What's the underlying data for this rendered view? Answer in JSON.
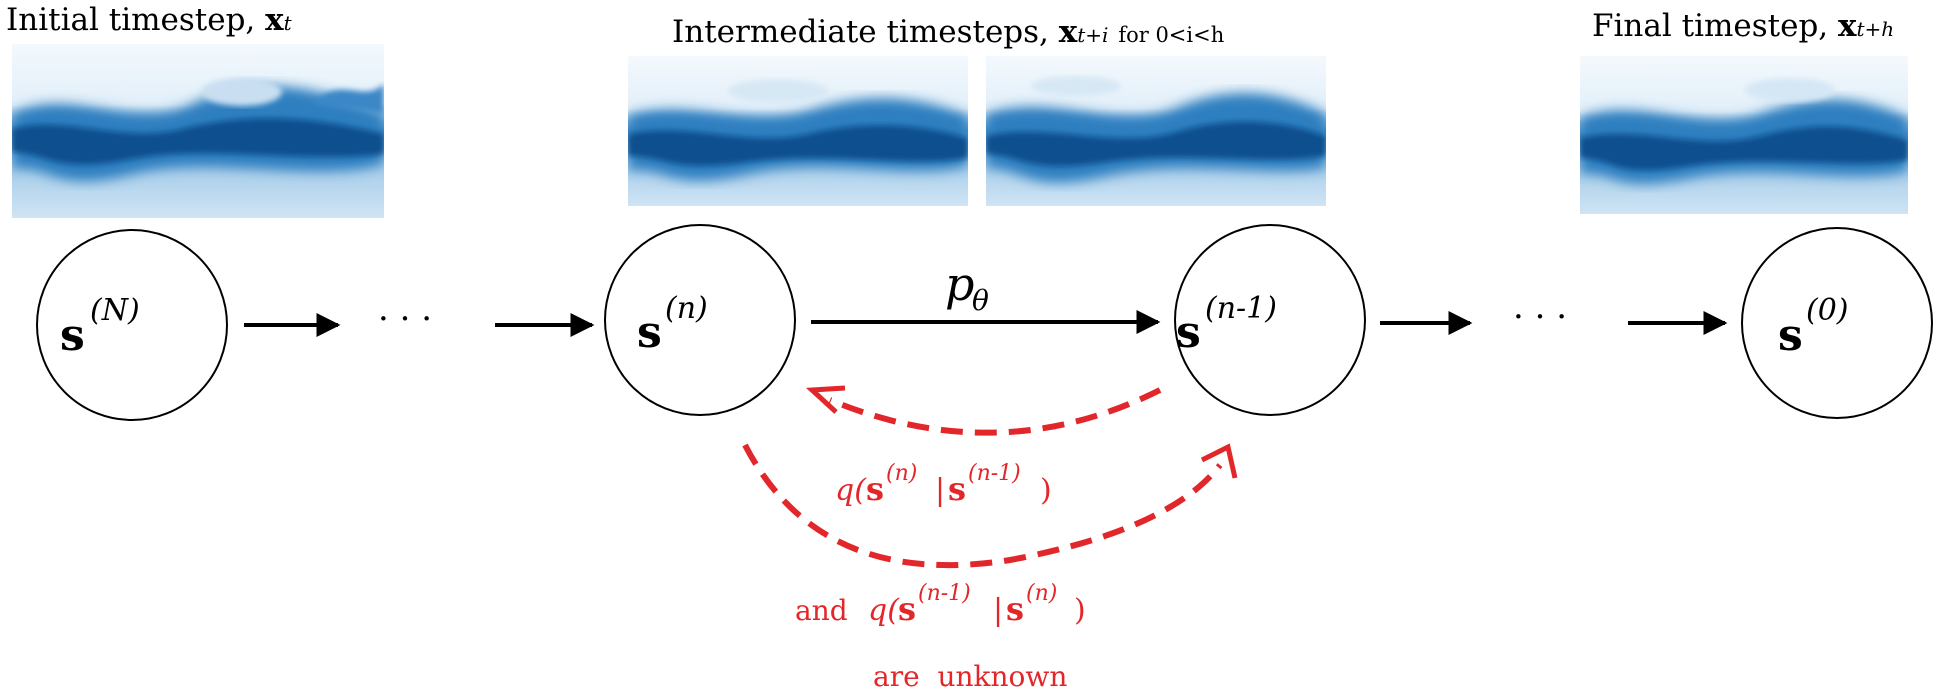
{
  "labels": {
    "initial": "Initial timestep,",
    "initial_var": "x",
    "initial_sub": "t",
    "intermediate": "Intermediate timesteps,",
    "intermediate_var": "x",
    "intermediate_sub": "t+i",
    "intermediate_cond": "for 0<i<h",
    "final": "Final timestep,",
    "final_var": "x",
    "final_sub": "t+h"
  },
  "nodes": {
    "n1_base": "s",
    "n1_sup": "(N)",
    "n2_base": "s",
    "n2_sup": "(n)",
    "n3_base": "s",
    "n3_sup": "(n-1)",
    "n4_base": "s",
    "n4_sup": "(0)"
  },
  "ellipsis": "· · ·",
  "model_label_base": "p",
  "model_label_sub": "θ",
  "q1": "q(s(n)|s(n-1))",
  "q1_parts": {
    "q": "q(",
    "s1": "s",
    "sup1": "(n)",
    "bar": "|",
    "s2": "s",
    "sup2": "(n-1)",
    "close": ")"
  },
  "q2_parts": {
    "and": "and",
    "q": "q(",
    "s1": "s",
    "sup1": "(n-1)",
    "bar": "|",
    "s2": "s",
    "sup2": "(n)",
    "close": ")"
  },
  "unknown": "are  unknown",
  "colors": {
    "red": "#e2272b",
    "dye_dark": "#0b4f8f",
    "dye_mid": "#3f8dc9",
    "dye_light": "#d5e9f6"
  }
}
